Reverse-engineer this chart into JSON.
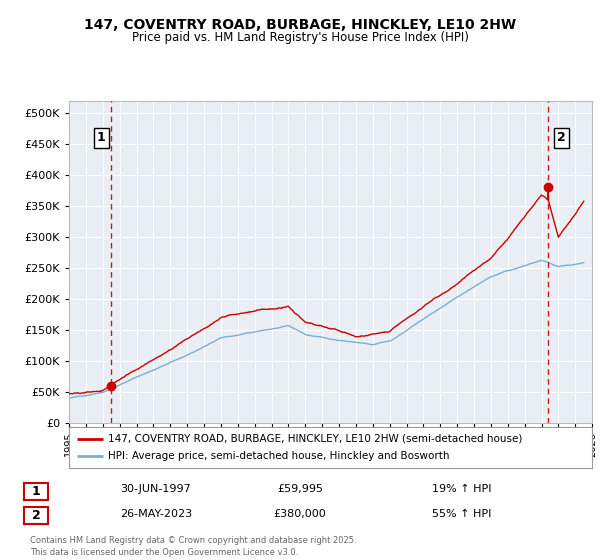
{
  "title_line1": "147, COVENTRY ROAD, BURBAGE, HINCKLEY, LE10 2HW",
  "title_line2": "Price paid vs. HM Land Registry's House Price Index (HPI)",
  "legend_red": "147, COVENTRY ROAD, BURBAGE, HINCKLEY, LE10 2HW (semi-detached house)",
  "legend_blue": "HPI: Average price, semi-detached house, Hinckley and Bosworth",
  "point1_label": "1",
  "point1_date": "30-JUN-1997",
  "point1_price": "£59,995",
  "point1_hpi": "19% ↑ HPI",
  "point2_label": "2",
  "point2_date": "26-MAY-2023",
  "point2_price": "£380,000",
  "point2_hpi": "55% ↑ HPI",
  "footer": "Contains HM Land Registry data © Crown copyright and database right 2025.\nThis data is licensed under the Open Government Licence v3.0.",
  "red_color": "#cc0000",
  "blue_color": "#7bafd4",
  "dashed_color": "#cc0000",
  "background_color": "#e8eef4",
  "grid_color": "#ffffff",
  "ylim": [
    0,
    520000
  ],
  "yticks": [
    0,
    50000,
    100000,
    150000,
    200000,
    250000,
    300000,
    350000,
    400000,
    450000,
    500000
  ],
  "point1_x": 1997.5,
  "point1_y": 59995,
  "point2_x": 2023.4,
  "point2_y": 380000,
  "xmin": 1995,
  "xmax": 2026
}
